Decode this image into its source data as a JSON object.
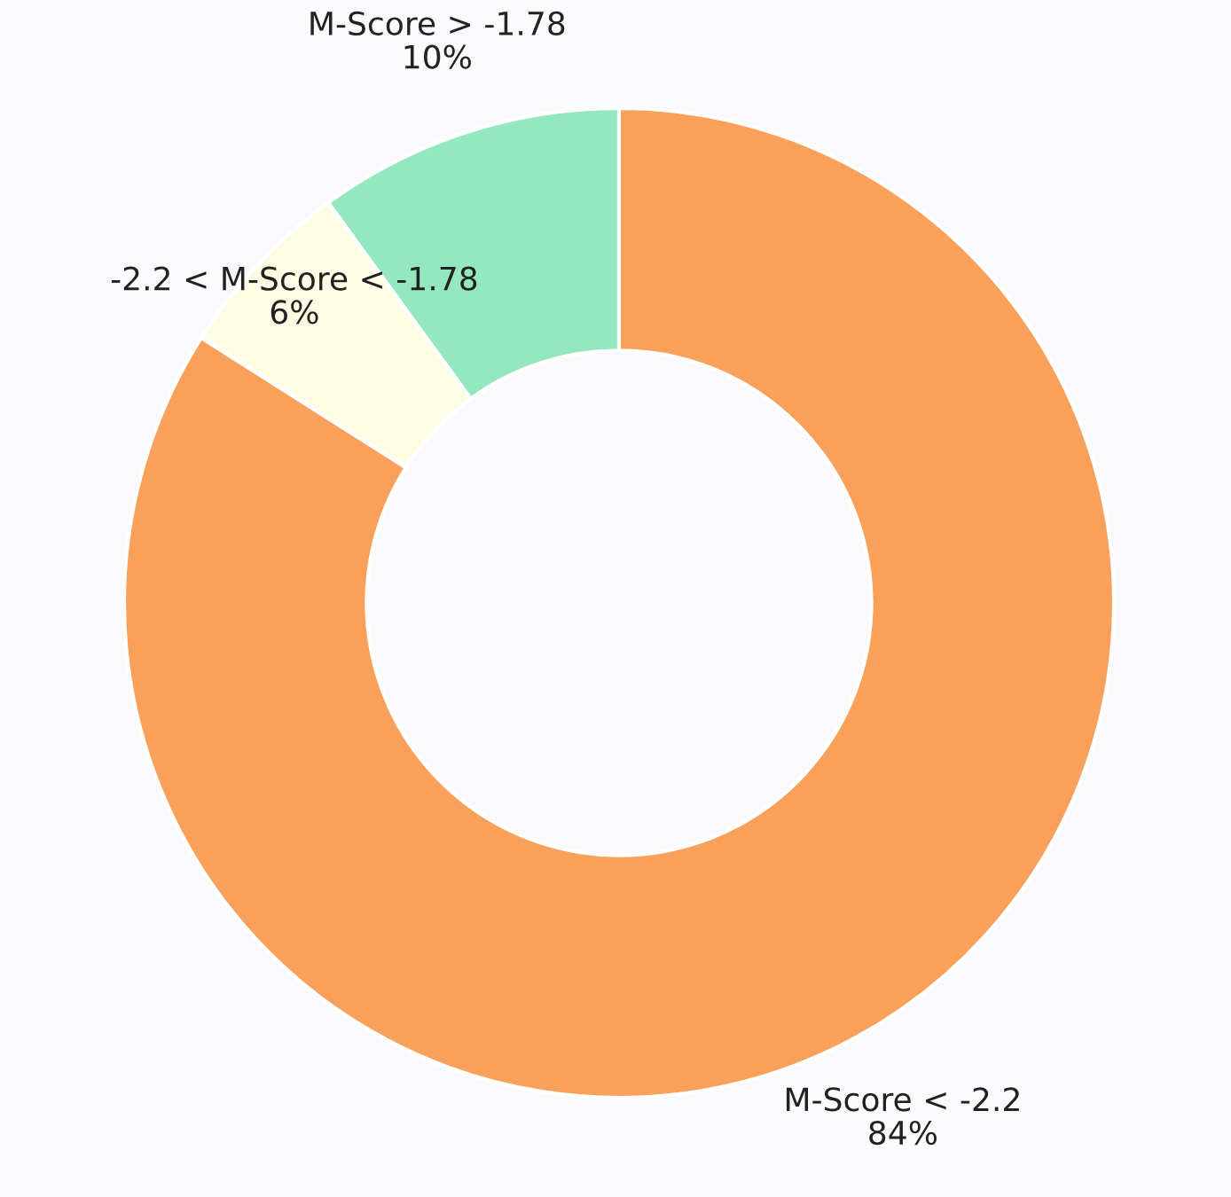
{
  "chart_data": {
    "type": "donut",
    "categories": [
      "M-Score > -1.78",
      "-2.2 < M-Score < -1.78",
      "M-Score < -2.2"
    ],
    "values": [
      10,
      6,
      84
    ],
    "colors": [
      "#94e8bf",
      "#fefde3",
      "#f9a05a"
    ],
    "value_labels": [
      "10%",
      "6%",
      "84%"
    ]
  }
}
